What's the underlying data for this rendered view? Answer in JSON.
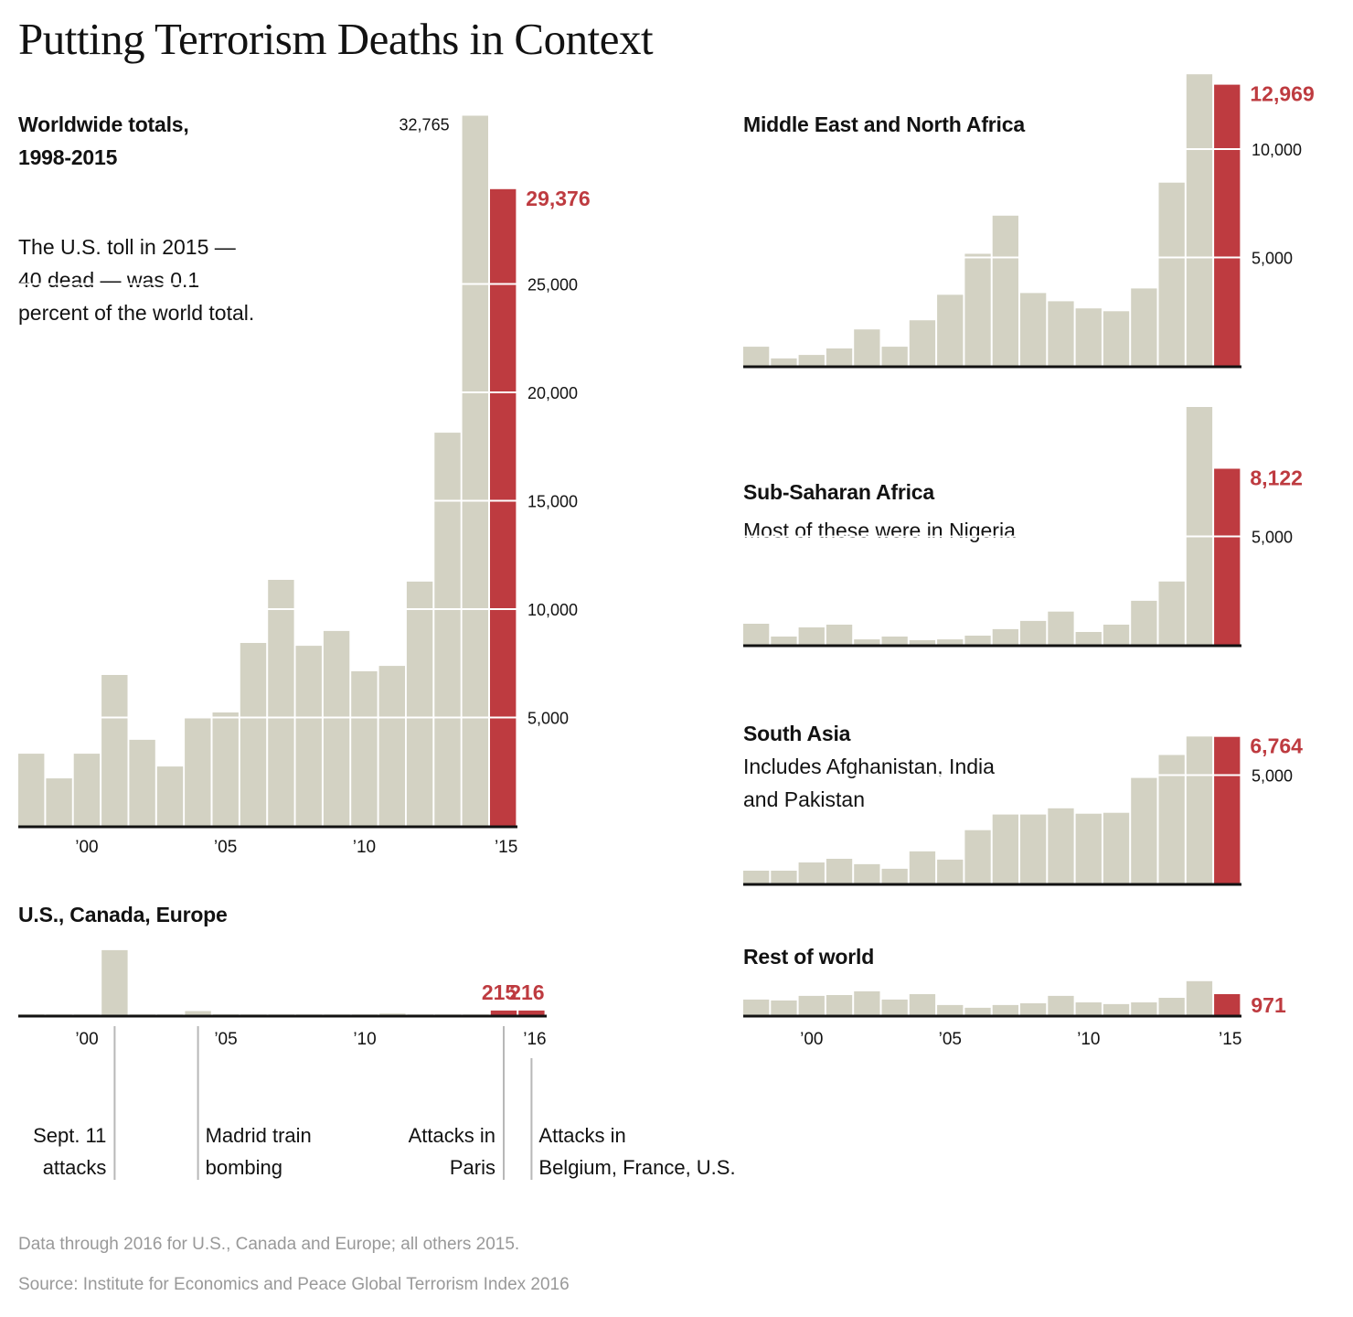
{
  "title": "Putting Terrorism Deaths in Context",
  "colors": {
    "bar": "#d3d2c3",
    "highlight": "#be3b40",
    "axis": "#121212",
    "footnote": "#999999"
  },
  "panels": {
    "worldwide": {
      "title_line1": "Worldwide totals,",
      "title_line2": "1998-2015",
      "note_lines": [
        "The U.S. toll in 2015 —",
        "40 dead —  was 0.1",
        "percent of the world total."
      ]
    },
    "useurope": {
      "title": "U.S., Canada, Europe"
    },
    "mena": {
      "title": "Middle East and North Africa"
    },
    "ssa": {
      "title": "Sub-Saharan Africa",
      "note": "Most of these were in Nigeria"
    },
    "southasia": {
      "title": "South Asia",
      "note_lines": [
        "Includes Afghanistan, India",
        "and Pakistan"
      ]
    },
    "rest": {
      "title": "Rest of world"
    }
  },
  "chart_data": [
    {
      "id": "worldwide",
      "type": "bar",
      "title": "Worldwide totals, 1998-2015",
      "categories": [
        1998,
        1999,
        2000,
        2001,
        2002,
        2003,
        2004,
        2005,
        2006,
        2007,
        2008,
        2009,
        2010,
        2011,
        2012,
        2013,
        2014,
        2015
      ],
      "values": [
        3330,
        2190,
        3330,
        6960,
        3970,
        2740,
        5020,
        5230,
        8440,
        11350,
        8310,
        8990,
        7130,
        7380,
        11270,
        18140,
        32765,
        29376
      ],
      "highlight_index": 17,
      "yticks": [
        5000,
        10000,
        15000,
        20000,
        25000
      ],
      "ytick_labels": [
        "5,000",
        "10,000",
        "15,000",
        "20,000",
        "25,000"
      ],
      "xtick_years": [
        2000,
        2005,
        2010,
        2015
      ],
      "xtick_labels": [
        "’00",
        "’05",
        "’10",
        "’15"
      ],
      "labels": [
        {
          "index": 16,
          "text": "32,765",
          "style": "black",
          "side": "left"
        },
        {
          "index": 17,
          "text": "29,376",
          "style": "red",
          "side": "right"
        }
      ],
      "xlabel": "",
      "ylabel": "",
      "ylim": [
        0,
        33000
      ]
    },
    {
      "id": "useurope",
      "type": "bar",
      "title": "U.S., Canada, Europe",
      "categories": [
        1998,
        1999,
        2000,
        2001,
        2002,
        2003,
        2004,
        2005,
        2006,
        2007,
        2008,
        2009,
        2010,
        2011,
        2012,
        2013,
        2014,
        2015,
        2016
      ],
      "values": [
        40,
        5,
        5,
        3000,
        5,
        5,
        190,
        40,
        5,
        5,
        5,
        5,
        5,
        77,
        5,
        5,
        5,
        215,
        216
      ],
      "highlight_indices": [
        17,
        18
      ],
      "yticks": [],
      "xtick_years": [
        2000,
        2005,
        2010,
        2016
      ],
      "xtick_labels": [
        "’00",
        "’05",
        "’10",
        "’16"
      ],
      "labels": [
        {
          "index": 17,
          "text": "215",
          "style": "red"
        },
        {
          "index": 18,
          "text": "216",
          "style": "red"
        }
      ],
      "annotations": [
        {
          "year": 2001,
          "lines": [
            "Sept. 11",
            "attacks"
          ],
          "align": "right"
        },
        {
          "year": 2004,
          "lines": [
            "Madrid train",
            "bombing"
          ],
          "align": "left"
        },
        {
          "year": 2015,
          "lines": [
            "Attacks in",
            "Paris"
          ],
          "align": "right"
        },
        {
          "year": 2016,
          "lines": [
            "Attacks in",
            "Belgium, France, U.S."
          ],
          "align": "left"
        }
      ]
    },
    {
      "id": "mena",
      "type": "bar",
      "title": "Middle East and North Africa",
      "categories": [
        1998,
        1999,
        2000,
        2001,
        2002,
        2003,
        2004,
        2005,
        2006,
        2007,
        2008,
        2009,
        2010,
        2011,
        2012,
        2013,
        2014,
        2015
      ],
      "values": [
        880,
        340,
        500,
        800,
        1680,
        880,
        2100,
        3280,
        5170,
        6930,
        3360,
        2980,
        2650,
        2520,
        3570,
        8450,
        13450,
        12969
      ],
      "highlight_index": 17,
      "yticks": [
        5000,
        10000
      ],
      "ytick_labels": [
        "5,000",
        "10,000"
      ],
      "labels": [
        {
          "index": 17,
          "text": "12,969",
          "style": "red"
        }
      ]
    },
    {
      "id": "ssa",
      "type": "bar",
      "title": "Sub-Saharan Africa",
      "subtitle": "Most of these were in Nigeria",
      "categories": [
        1998,
        1999,
        2000,
        2001,
        2002,
        2003,
        2004,
        2005,
        2006,
        2007,
        2008,
        2009,
        2010,
        2011,
        2012,
        2013,
        2014,
        2015
      ],
      "values": [
        970,
        380,
        800,
        930,
        250,
        380,
        210,
        250,
        420,
        720,
        1100,
        1530,
        590,
        930,
        2030,
        2920,
        10970,
        8122
      ],
      "highlight_index": 17,
      "yticks": [
        5000
      ],
      "ytick_labels": [
        "5,000"
      ],
      "labels": [
        {
          "index": 17,
          "text": "8,122",
          "style": "red"
        }
      ]
    },
    {
      "id": "southasia",
      "type": "bar",
      "title": "South Asia",
      "subtitle": "Includes Afghanistan, India and Pakistan",
      "categories": [
        1998,
        1999,
        2000,
        2001,
        2002,
        2003,
        2004,
        2005,
        2006,
        2007,
        2008,
        2009,
        2010,
        2011,
        2012,
        2013,
        2014,
        2015
      ],
      "values": [
        590,
        590,
        970,
        1140,
        890,
        680,
        1480,
        1100,
        2460,
        3180,
        3180,
        3470,
        3220,
        3260,
        4870,
        5930,
        6780,
        6764
      ],
      "highlight_index": 17,
      "yticks": [
        5000
      ],
      "ytick_labels": [
        "5,000"
      ],
      "labels": [
        {
          "index": 17,
          "text": "6,764",
          "style": "red"
        }
      ]
    },
    {
      "id": "rest",
      "type": "bar",
      "title": "Rest of world",
      "categories": [
        1998,
        1999,
        2000,
        2001,
        2002,
        2003,
        2004,
        2005,
        2006,
        2007,
        2008,
        2009,
        2010,
        2011,
        2012,
        2013,
        2014,
        2015
      ],
      "values": [
        720,
        680,
        890,
        930,
        1100,
        720,
        970,
        470,
        340,
        470,
        550,
        890,
        590,
        510,
        590,
        800,
        1570,
        971
      ],
      "highlight_index": 17,
      "yticks": [],
      "xtick_years": [
        2000,
        2005,
        2010,
        2015
      ],
      "xtick_labels": [
        "’00",
        "’05",
        "’10",
        "’15"
      ],
      "labels": [
        {
          "index": 17,
          "text": "971",
          "style": "red"
        }
      ]
    }
  ],
  "footer": {
    "note": "Data through 2016 for U.S., Canada and Europe; all others 2015.",
    "source": "Source: Institute for Economics and Peace Global Terrorism Index 2016"
  }
}
